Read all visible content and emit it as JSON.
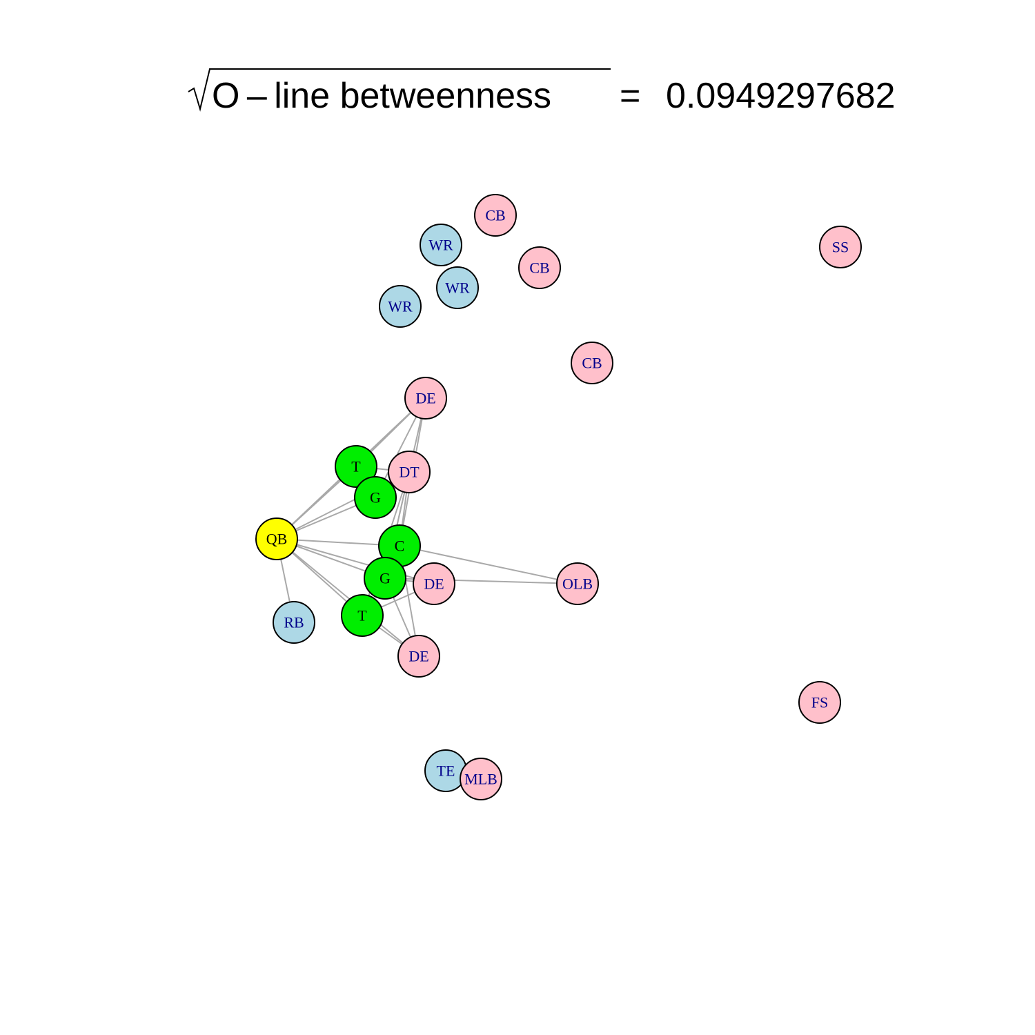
{
  "title": {
    "metric": "O – line  betweenness",
    "equals": "=",
    "value": "0.0949297682"
  },
  "colors": {
    "offense_skill": "#add8e6",
    "defense": "#ffc0cb",
    "offensive_line": "#00ee00",
    "quarterback": "#ffff00",
    "edge": "#a9a9a9",
    "label_dark": "#00008b",
    "label_black": "#000000"
  },
  "nodes": [
    {
      "id": "cb1",
      "label": "CB",
      "group": "defense"
    },
    {
      "id": "wr1",
      "label": "WR",
      "group": "offense_skill"
    },
    {
      "id": "cb2",
      "label": "CB",
      "group": "defense"
    },
    {
      "id": "wr2",
      "label": "WR",
      "group": "offense_skill"
    },
    {
      "id": "wr3",
      "label": "WR",
      "group": "offense_skill"
    },
    {
      "id": "ss",
      "label": "SS",
      "group": "defense"
    },
    {
      "id": "cb3",
      "label": "CB",
      "group": "defense"
    },
    {
      "id": "de1",
      "label": "DE",
      "group": "defense"
    },
    {
      "id": "t1",
      "label": "T",
      "group": "offensive_line"
    },
    {
      "id": "dt",
      "label": "DT",
      "group": "defense"
    },
    {
      "id": "g1",
      "label": "G",
      "group": "offensive_line"
    },
    {
      "id": "qb",
      "label": "QB",
      "group": "quarterback"
    },
    {
      "id": "c",
      "label": "C",
      "group": "offensive_line"
    },
    {
      "id": "g2",
      "label": "G",
      "group": "offensive_line"
    },
    {
      "id": "de2",
      "label": "DE",
      "group": "defense"
    },
    {
      "id": "olb",
      "label": "OLB",
      "group": "defense"
    },
    {
      "id": "rb",
      "label": "RB",
      "group": "offense_skill"
    },
    {
      "id": "t2",
      "label": "T",
      "group": "offensive_line"
    },
    {
      "id": "de3",
      "label": "DE",
      "group": "defense"
    },
    {
      "id": "fs",
      "label": "FS",
      "group": "defense"
    },
    {
      "id": "te",
      "label": "TE",
      "group": "offense_skill"
    },
    {
      "id": "mlb",
      "label": "MLB",
      "group": "defense"
    }
  ],
  "edges": [
    [
      "qb",
      "t1"
    ],
    [
      "qb",
      "g1"
    ],
    [
      "qb",
      "c"
    ],
    [
      "qb",
      "g2"
    ],
    [
      "qb",
      "t2"
    ],
    [
      "qb",
      "rb"
    ],
    [
      "qb",
      "de1"
    ],
    [
      "qb",
      "dt"
    ],
    [
      "qb",
      "de2"
    ],
    [
      "qb",
      "de3"
    ],
    [
      "t1",
      "dt"
    ],
    [
      "t1",
      "de1"
    ],
    [
      "g1",
      "dt"
    ],
    [
      "g1",
      "de1"
    ],
    [
      "c",
      "dt"
    ],
    [
      "c",
      "olb"
    ],
    [
      "c",
      "de1"
    ],
    [
      "g2",
      "dt"
    ],
    [
      "g2",
      "de2"
    ],
    [
      "g2",
      "de3"
    ],
    [
      "g2",
      "olb"
    ],
    [
      "t2",
      "de2"
    ],
    [
      "t2",
      "de3"
    ],
    [
      "t2",
      "dt"
    ],
    [
      "de1",
      "g2"
    ],
    [
      "de3",
      "c"
    ]
  ]
}
